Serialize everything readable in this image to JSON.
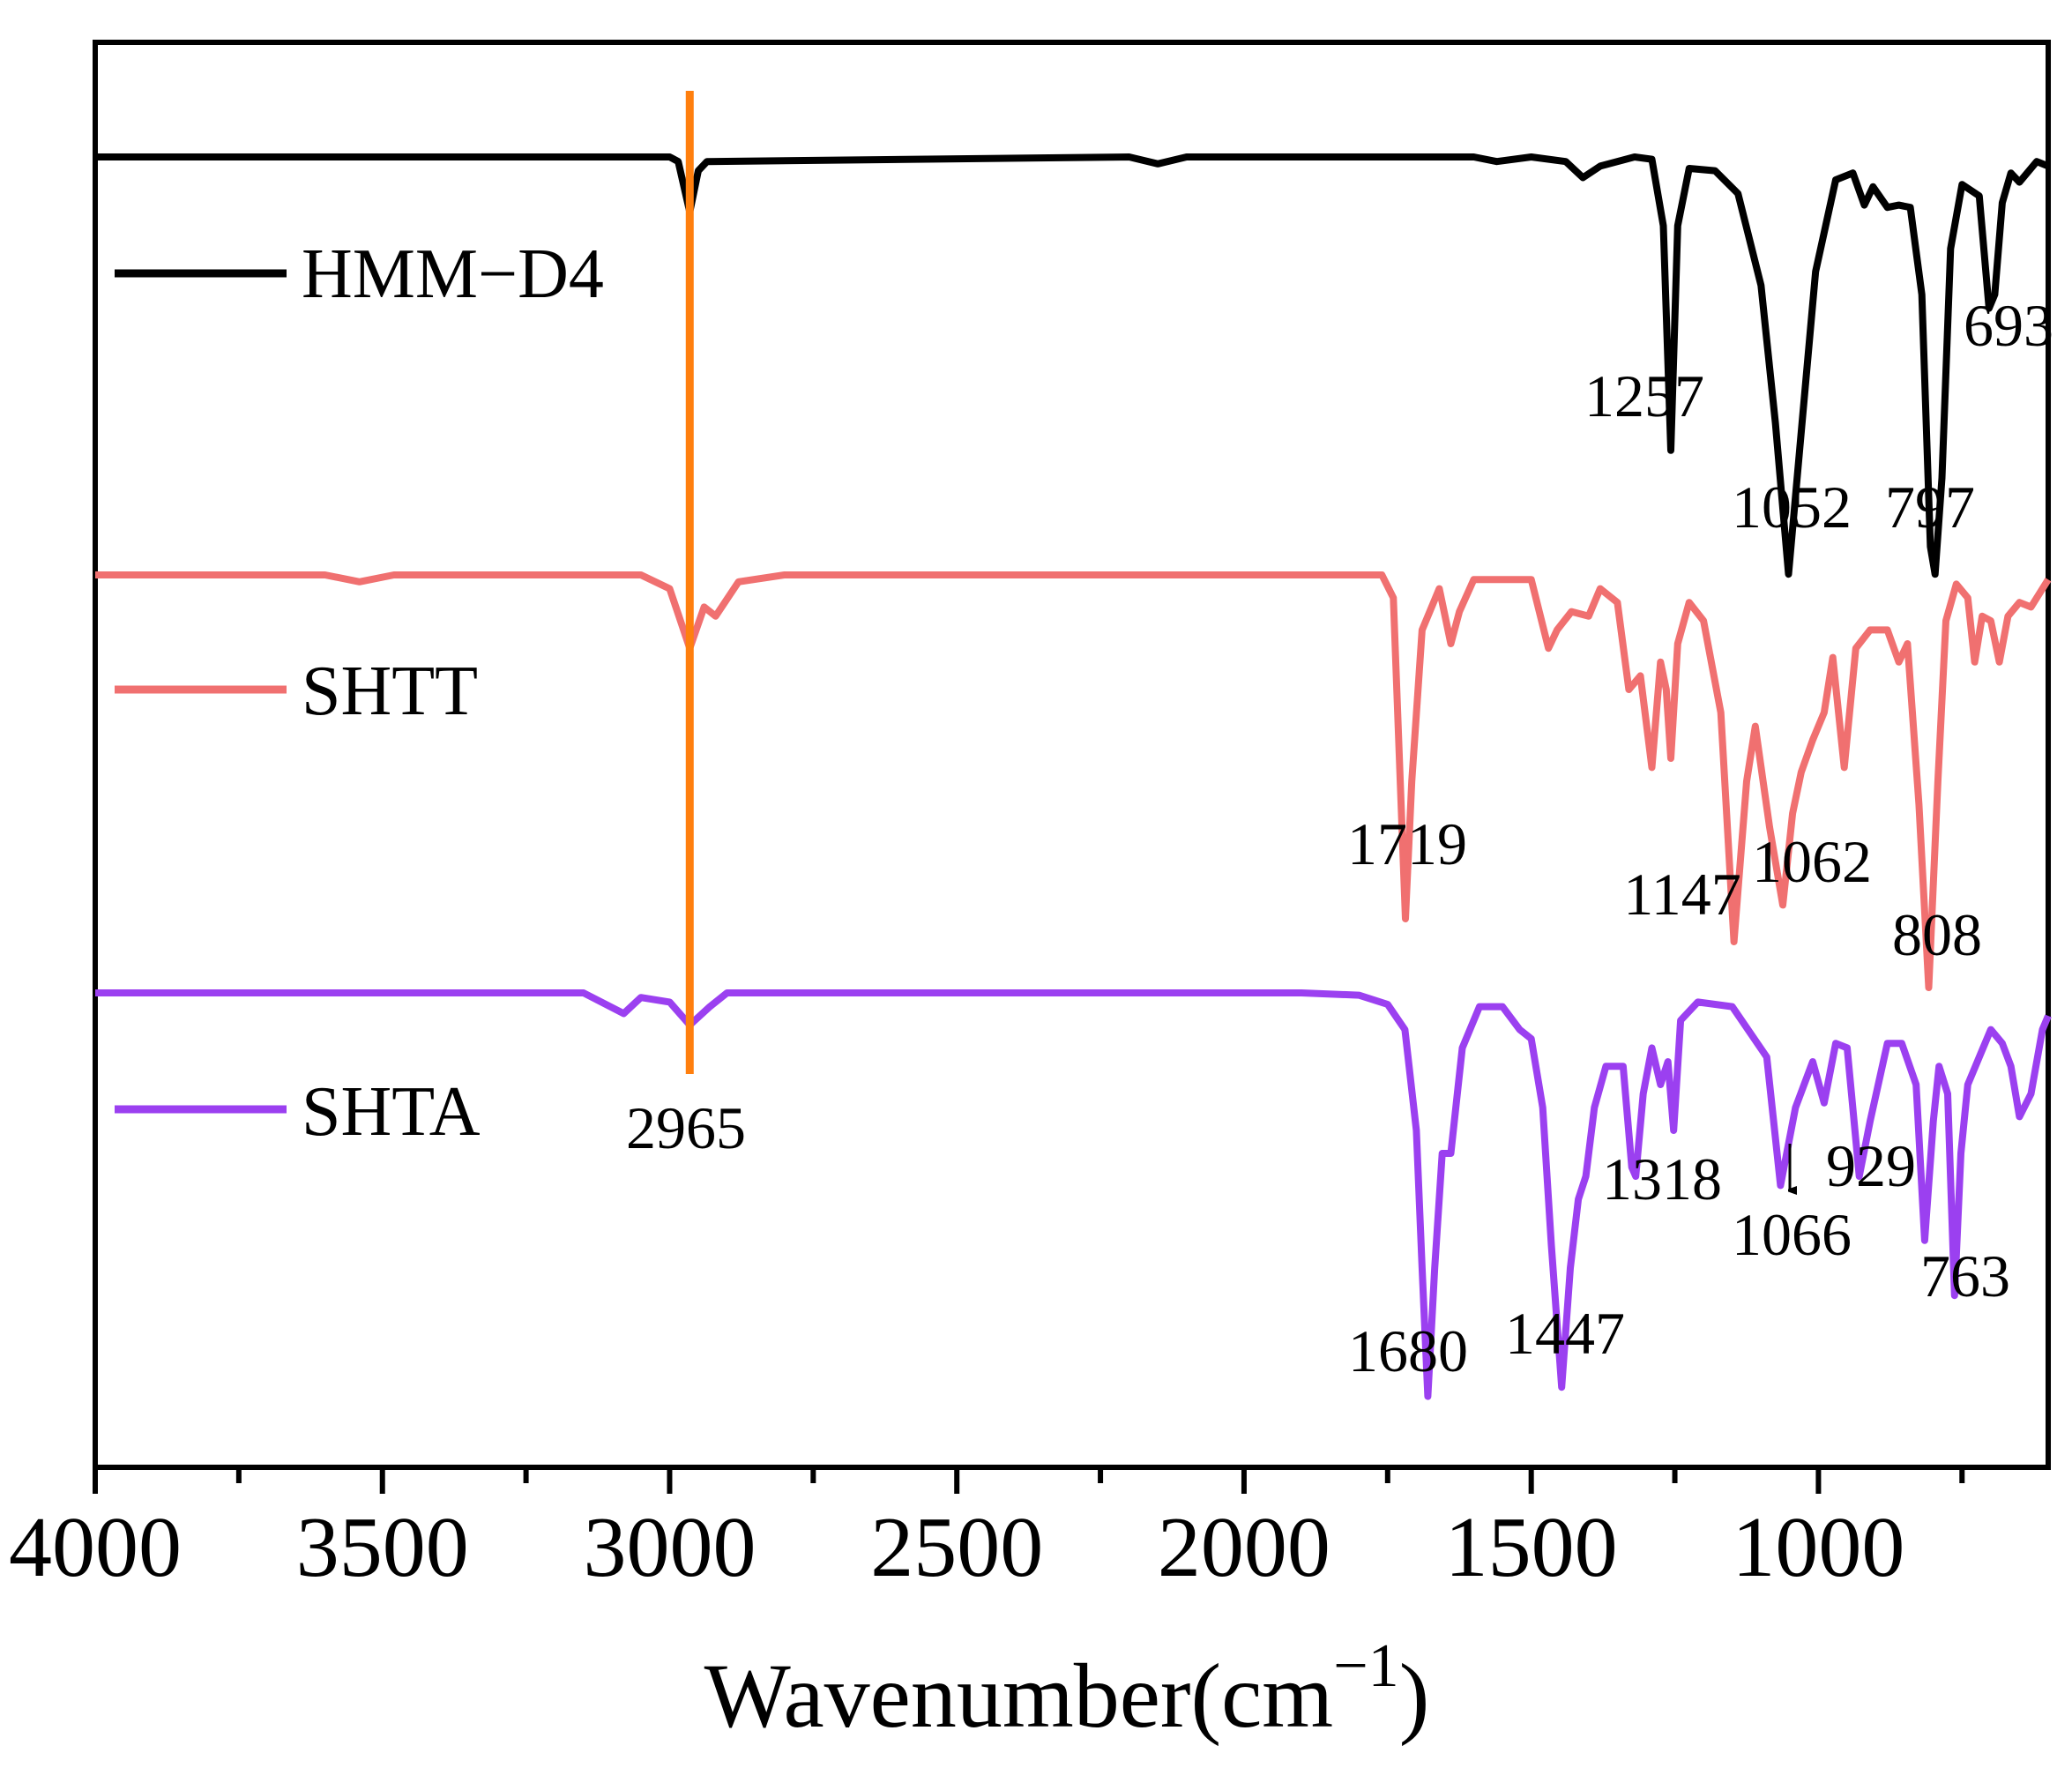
{
  "chart_data": {
    "type": "line",
    "title": "",
    "xlabel": "Wavenumber(cm",
    "xlabel_sup": "−1",
    "xlabel_close": ")",
    "ylabel": "",
    "xlim": [
      4000,
      600
    ],
    "x_ticks": [
      4000,
      3500,
      3000,
      2500,
      2000,
      1500,
      1000
    ],
    "x_minor_step": 250,
    "grid": false,
    "legend_position": "left",
    "marker_line": {
      "x": 2965,
      "label": "2965",
      "color": "#ff7f0e"
    },
    "series": [
      {
        "name": "HMM−D4",
        "color": "#000000",
        "baseline": 0,
        "points": [
          [
            4000,
            0
          ],
          [
            3200,
            0
          ],
          [
            3000,
            0
          ],
          [
            2985,
            0.1
          ],
          [
            2965,
            1.2
          ],
          [
            2950,
            0.3
          ],
          [
            2935,
            0.1
          ],
          [
            2200,
            0
          ],
          [
            2150,
            0.15
          ],
          [
            2100,
            0
          ],
          [
            1600,
            0
          ],
          [
            1560,
            0.1
          ],
          [
            1500,
            0
          ],
          [
            1440,
            0.1
          ],
          [
            1410,
            0.45
          ],
          [
            1380,
            0.2
          ],
          [
            1320,
            0
          ],
          [
            1290,
            0.05
          ],
          [
            1270,
            1.5
          ],
          [
            1257,
            6.4
          ],
          [
            1245,
            1.5
          ],
          [
            1225,
            0.25
          ],
          [
            1180,
            0.3
          ],
          [
            1140,
            0.8
          ],
          [
            1100,
            2.8
          ],
          [
            1075,
            5.8
          ],
          [
            1052,
            9.1
          ],
          [
            1030,
            6
          ],
          [
            1005,
            2.5
          ],
          [
            970,
            0.5
          ],
          [
            940,
            0.35
          ],
          [
            920,
            1.05
          ],
          [
            905,
            0.65
          ],
          [
            880,
            1.1
          ],
          [
            860,
            1.05
          ],
          [
            840,
            1.1
          ],
          [
            820,
            3
          ],
          [
            805,
            8.5
          ],
          [
            797,
            9.1
          ],
          [
            785,
            7
          ],
          [
            770,
            2
          ],
          [
            750,
            0.6
          ],
          [
            720,
            0.85
          ],
          [
            703,
            3.3
          ],
          [
            693,
            3
          ],
          [
            680,
            1
          ],
          [
            665,
            0.35
          ],
          [
            650,
            0.55
          ],
          [
            620,
            0.1
          ],
          [
            600,
            0.2
          ]
        ],
        "peak_labels": [
          "1257",
          "1052",
          "797",
          "693"
        ]
      },
      {
        "name": "SHTT",
        "color": "#f07070",
        "baseline": 0,
        "points": [
          [
            4000,
            0
          ],
          [
            3600,
            0
          ],
          [
            3540,
            0.15
          ],
          [
            3480,
            0
          ],
          [
            3050,
            0
          ],
          [
            3000,
            0.3
          ],
          [
            2965,
            1.6
          ],
          [
            2940,
            0.7
          ],
          [
            2920,
            0.9
          ],
          [
            2880,
            0.15
          ],
          [
            2800,
            0
          ],
          [
            2000,
            0
          ],
          [
            1760,
            0
          ],
          [
            1740,
            0.5
          ],
          [
            1728,
            4.5
          ],
          [
            1719,
            7.5
          ],
          [
            1708,
            4.5
          ],
          [
            1690,
            1.2
          ],
          [
            1660,
            0.3
          ],
          [
            1640,
            1.5
          ],
          [
            1625,
            0.8
          ],
          [
            1600,
            0.1
          ],
          [
            1500,
            0.1
          ],
          [
            1470,
            1.6
          ],
          [
            1455,
            1.2
          ],
          [
            1430,
            0.8
          ],
          [
            1400,
            0.9
          ],
          [
            1380,
            0.3
          ],
          [
            1350,
            0.6
          ],
          [
            1330,
            2.5
          ],
          [
            1310,
            2.2
          ],
          [
            1290,
            4.2
          ],
          [
            1275,
            1.9
          ],
          [
            1265,
            2.5
          ],
          [
            1257,
            4
          ],
          [
            1245,
            1.5
          ],
          [
            1225,
            0.6
          ],
          [
            1200,
            1
          ],
          [
            1170,
            3
          ],
          [
            1147,
            8
          ],
          [
            1125,
            4.5
          ],
          [
            1110,
            3.3
          ],
          [
            1085,
            5.5
          ],
          [
            1062,
            7.2
          ],
          [
            1045,
            5.2
          ],
          [
            1030,
            4.3
          ],
          [
            1010,
            3.6
          ],
          [
            990,
            3
          ],
          [
            975,
            1.8
          ],
          [
            955,
            4.2
          ],
          [
            935,
            1.6
          ],
          [
            910,
            1.2
          ],
          [
            880,
            1.2
          ],
          [
            860,
            1.9
          ],
          [
            845,
            1.5
          ],
          [
            825,
            5
          ],
          [
            808,
            9
          ],
          [
            792,
            4.5
          ],
          [
            778,
            1
          ],
          [
            760,
            0.2
          ],
          [
            740,
            0.5
          ],
          [
            728,
            1.9
          ],
          [
            715,
            0.9
          ],
          [
            700,
            1
          ],
          [
            685,
            1.9
          ],
          [
            670,
            0.9
          ],
          [
            650,
            0.6
          ],
          [
            630,
            0.7
          ],
          [
            600,
            0.1
          ]
        ],
        "peak_labels": [
          "1719",
          "1147",
          "1062",
          "808"
        ]
      },
      {
        "name": "SHTA",
        "color": "#9b40f0",
        "baseline": 0,
        "points": [
          [
            4000,
            0
          ],
          [
            3150,
            0
          ],
          [
            3080,
            0.45
          ],
          [
            3050,
            0.1
          ],
          [
            3000,
            0.2
          ],
          [
            2965,
            0.7
          ],
          [
            2930,
            0.3
          ],
          [
            2900,
            0
          ],
          [
            1900,
            0
          ],
          [
            1800,
            0.05
          ],
          [
            1750,
            0.25
          ],
          [
            1720,
            0.8
          ],
          [
            1700,
            3
          ],
          [
            1690,
            6
          ],
          [
            1680,
            8.8
          ],
          [
            1668,
            6
          ],
          [
            1655,
            3.5
          ],
          [
            1640,
            3.5
          ],
          [
            1620,
            1.2
          ],
          [
            1590,
            0.3
          ],
          [
            1550,
            0.3
          ],
          [
            1520,
            0.8
          ],
          [
            1500,
            1
          ],
          [
            1480,
            2.5
          ],
          [
            1465,
            5.5
          ],
          [
            1447,
            8.6
          ],
          [
            1432,
            6
          ],
          [
            1418,
            4.5
          ],
          [
            1405,
            4
          ],
          [
            1390,
            2.5
          ],
          [
            1370,
            1.6
          ],
          [
            1340,
            1.6
          ],
          [
            1325,
            3.8
          ],
          [
            1318,
            4
          ],
          [
            1305,
            2.2
          ],
          [
            1290,
            1.2
          ],
          [
            1275,
            2
          ],
          [
            1262,
            1.5
          ],
          [
            1252,
            3
          ],
          [
            1240,
            0.6
          ],
          [
            1210,
            0.2
          ],
          [
            1150,
            0.3
          ],
          [
            1090,
            1.4
          ],
          [
            1066,
            4.2
          ],
          [
            1040,
            2.5
          ],
          [
            1010,
            1.5
          ],
          [
            990,
            2.4
          ],
          [
            970,
            1.1
          ],
          [
            950,
            1.2
          ],
          [
            929,
            4
          ],
          [
            910,
            2.8
          ],
          [
            880,
            1.1
          ],
          [
            855,
            1.1
          ],
          [
            830,
            2
          ],
          [
            815,
            5.4
          ],
          [
            800,
            2.8
          ],
          [
            790,
            1.6
          ],
          [
            775,
            2.2
          ],
          [
            763,
            6.6
          ],
          [
            752,
            3.5
          ],
          [
            740,
            2
          ],
          [
            720,
            1.4
          ],
          [
            700,
            0.8
          ],
          [
            680,
            1.1
          ],
          [
            665,
            1.6
          ],
          [
            650,
            2.7
          ],
          [
            630,
            2.2
          ],
          [
            610,
            0.8
          ],
          [
            600,
            0.5
          ]
        ],
        "peak_labels": [
          "1680",
          "1447",
          "1318",
          "1066",
          "929",
          "763"
        ]
      }
    ],
    "annotations": [
      "1257",
      "1052",
      "797",
      "693",
      "1719",
      "1147",
      "1062",
      "808",
      "1680",
      "1447",
      "1318",
      "1066",
      "929",
      "763",
      "2965"
    ]
  }
}
